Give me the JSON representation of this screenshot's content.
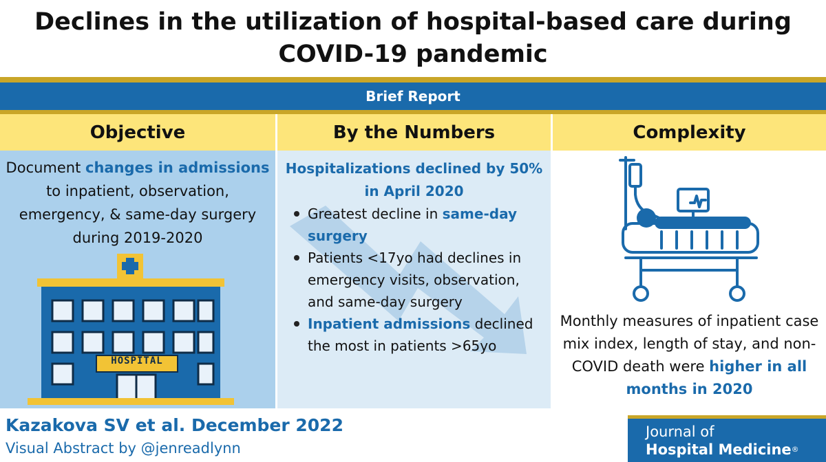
{
  "title": {
    "line1": "Declines in the utilization of hospital-based care during",
    "line2": "COVID-19 pandemic"
  },
  "report_type": "Brief Report",
  "colors": {
    "brand_blue": "#1a6aab",
    "gold": "#c9a628",
    "header_yellow": "#fde57a",
    "objective_bg": "#abd0ec",
    "numbers_bg": "#dcebf6"
  },
  "objective": {
    "heading": "Objective",
    "text_1": "Document ",
    "highlight": "changes in admissions",
    "text_2": " to inpatient, observation, emergency, & same-day surgery during 2019-2020",
    "icon": "hospital-building-icon",
    "sign": "HOSPITAL"
  },
  "numbers": {
    "heading": "By the Numbers",
    "headline": "Hospitalizations declined by 50% in April 2020",
    "icon": "downward-trend-arrow-icon",
    "bullets": [
      {
        "before": "Greatest decline in ",
        "highlight": "same-day surgery",
        "after": ""
      },
      {
        "before": "Patients <17yo had declines in emergency visits, observation, and same-day surgery",
        "highlight": "",
        "after": ""
      },
      {
        "before": "",
        "highlight": "Inpatient admissions",
        "after": " declined the most in patients >65yo"
      }
    ]
  },
  "complexity": {
    "heading": "Complexity",
    "icon": "hospital-bed-patient-icon",
    "text": "Monthly measures of inpatient case mix index, length of stay, and non-COVID death were ",
    "highlight": "higher in all months in 2020"
  },
  "footer": {
    "citation": "Kazakova SV et al. December 2022",
    "credit": "Visual Abstract by @jenreadlynn",
    "journal_line1": "Journal of",
    "journal_line2": "Hospital Medicine",
    "journal_mark": "®"
  }
}
